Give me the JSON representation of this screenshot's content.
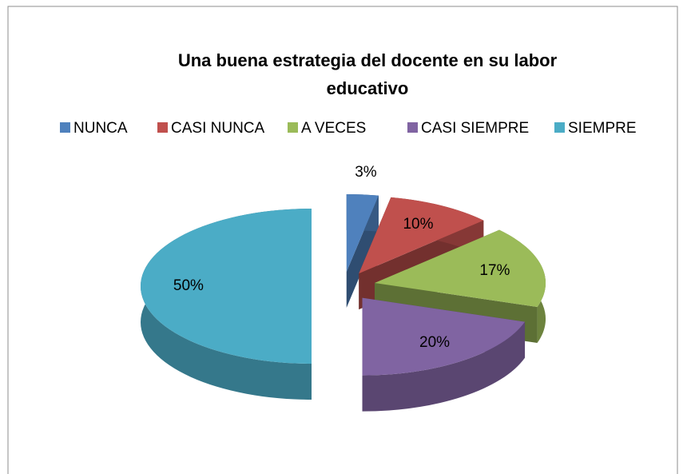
{
  "chart_data": {
    "type": "pie",
    "title": "Una buena estrategia del docente en su labor educativo",
    "categories": [
      "NUNCA",
      "CASI NUNCA",
      "A VECES",
      "CASI SIEMPRE",
      "SIEMPRE"
    ],
    "values": [
      3,
      10,
      17,
      20,
      50
    ],
    "value_labels": [
      "3%",
      "10%",
      "17%",
      "20%",
      "50%"
    ],
    "colors": [
      "#4f81bd",
      "#c0504d",
      "#9bbb59",
      "#8064a2",
      "#4bacc6"
    ],
    "legend": "top",
    "exploded": true,
    "3d": true
  }
}
